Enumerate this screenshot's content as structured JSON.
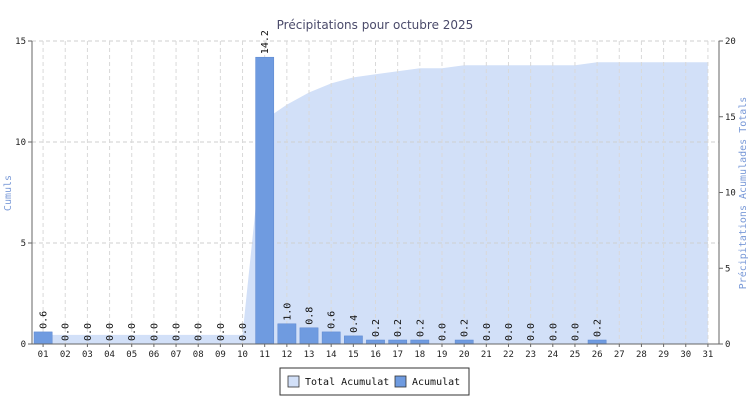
{
  "chart_data": {
    "type": "bar",
    "title": "Précipitations pour octubre 2025",
    "categories": [
      "01",
      "02",
      "03",
      "04",
      "05",
      "06",
      "07",
      "08",
      "09",
      "10",
      "11",
      "12",
      "13",
      "14",
      "15",
      "16",
      "17",
      "18",
      "19",
      "20",
      "21",
      "22",
      "23",
      "24",
      "25",
      "26",
      "27",
      "28",
      "29",
      "30",
      "31"
    ],
    "series": [
      {
        "name": "Acumulat",
        "type": "bar",
        "axis": "left",
        "color": "#6f9be0",
        "values": [
          0.6,
          0.0,
          0.0,
          0.0,
          0.0,
          0.0,
          0.0,
          0.0,
          0.0,
          0.0,
          14.2,
          1.0,
          0.8,
          0.6,
          0.4,
          0.2,
          0.2,
          0.2,
          0.0,
          0.2,
          0.0,
          0.0,
          0.0,
          0.0,
          0.0,
          0.2,
          null,
          null,
          null,
          null,
          null
        ],
        "labels": [
          "0.6",
          "0.0",
          "0.0",
          "0.0",
          "0.0",
          "0.0",
          "0.0",
          "0.0",
          "0.0",
          "0.0",
          "14.2",
          "1.0",
          "0.8",
          "0.6",
          "0.4",
          "0.2",
          "0.2",
          "0.2",
          "0.0",
          "0.2",
          "0.0",
          "0.0",
          "0.0",
          "0.0",
          "0.0",
          "0.2",
          "",
          "",
          "",
          "",
          ""
        ]
      },
      {
        "name": "Total Acumulat",
        "type": "area",
        "axis": "right",
        "color": "#d2e0f8",
        "values": [
          0.6,
          0.6,
          0.6,
          0.6,
          0.6,
          0.6,
          0.6,
          0.6,
          0.6,
          0.6,
          14.8,
          15.8,
          16.6,
          17.2,
          17.6,
          17.8,
          18.0,
          18.2,
          18.2,
          18.4,
          18.4,
          18.4,
          18.4,
          18.4,
          18.4,
          18.6,
          18.6,
          18.6,
          18.6,
          18.6,
          18.6
        ]
      }
    ],
    "ylabel": "Cumuls",
    "ylabel_right": "Précipitations Acumulades Totals",
    "ylim": [
      0,
      15
    ],
    "yticks": [
      0,
      5,
      10,
      15
    ],
    "ylim_right": [
      0,
      20
    ],
    "yticks_right": [
      0,
      5,
      10,
      15,
      20
    ],
    "grid": true,
    "legend_position": "bottom-center"
  }
}
